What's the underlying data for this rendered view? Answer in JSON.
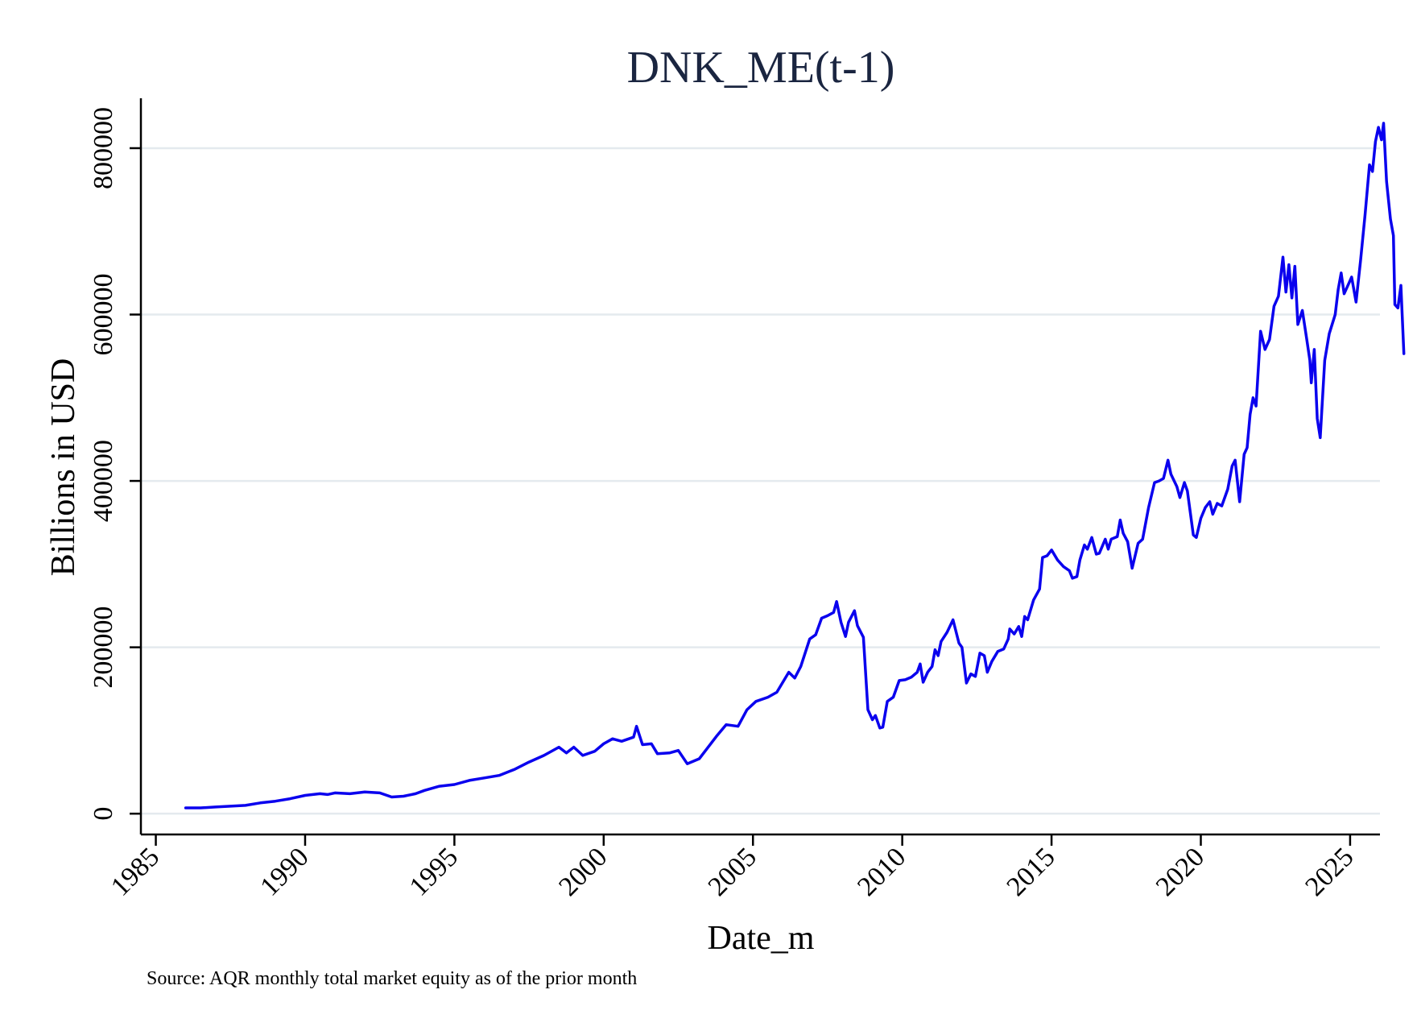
{
  "chart_data": {
    "type": "line",
    "title": "DNK_ME(t-1)",
    "xlabel": "Date_m",
    "ylabel": "Billions in USD",
    "note": "Source: AQR monthly total market equity as of the prior month",
    "xlim": [
      1984.5,
      2026
    ],
    "ylim": [
      -25000,
      860000
    ],
    "x_ticks": [
      1985,
      1990,
      1995,
      2000,
      2005,
      2010,
      2015,
      2020,
      2025
    ],
    "y_ticks": [
      0,
      200000,
      400000,
      600000,
      800000
    ],
    "grid": "horizontal",
    "colors": {
      "line": "#0a00ee",
      "grid": "#e4eaee",
      "axis": "#000000",
      "title": "#1a2540"
    },
    "series": [
      {
        "points": [
          [
            1986.0,
            7000
          ],
          [
            1986.5,
            7000
          ],
          [
            1987.0,
            8000
          ],
          [
            1987.5,
            9000
          ],
          [
            1988.0,
            10000
          ],
          [
            1988.5,
            13000
          ],
          [
            1989.0,
            15000
          ],
          [
            1989.5,
            18000
          ],
          [
            1990.0,
            22000
          ],
          [
            1990.5,
            24000
          ],
          [
            1990.75,
            23000
          ],
          [
            1991.0,
            25000
          ],
          [
            1991.5,
            24000
          ],
          [
            1992.0,
            26000
          ],
          [
            1992.5,
            25000
          ],
          [
            1992.9,
            20000
          ],
          [
            1993.3,
            21000
          ],
          [
            1993.7,
            24000
          ],
          [
            1994.0,
            28000
          ],
          [
            1994.5,
            33000
          ],
          [
            1995.0,
            35000
          ],
          [
            1995.5,
            40000
          ],
          [
            1996.0,
            43000
          ],
          [
            1996.5,
            46000
          ],
          [
            1997.0,
            53000
          ],
          [
            1997.5,
            62000
          ],
          [
            1998.0,
            70000
          ],
          [
            1998.5,
            80000
          ],
          [
            1998.75,
            73000
          ],
          [
            1999.0,
            80000
          ],
          [
            1999.3,
            70000
          ],
          [
            1999.7,
            75000
          ],
          [
            2000.0,
            84000
          ],
          [
            2000.3,
            90000
          ],
          [
            2000.6,
            87000
          ],
          [
            2001.0,
            92000
          ],
          [
            2001.1,
            105000
          ],
          [
            2001.3,
            83000
          ],
          [
            2001.6,
            84000
          ],
          [
            2001.8,
            72000
          ],
          [
            2002.2,
            73000
          ],
          [
            2002.5,
            76000
          ],
          [
            2002.8,
            60000
          ],
          [
            2003.2,
            66000
          ],
          [
            2003.5,
            80000
          ],
          [
            2003.8,
            94000
          ],
          [
            2004.1,
            107000
          ],
          [
            2004.5,
            105000
          ],
          [
            2004.8,
            125000
          ],
          [
            2005.1,
            135000
          ],
          [
            2005.5,
            140000
          ],
          [
            2005.8,
            146000
          ],
          [
            2006.0,
            158000
          ],
          [
            2006.2,
            170000
          ],
          [
            2006.4,
            163000
          ],
          [
            2006.6,
            177000
          ],
          [
            2006.9,
            210000
          ],
          [
            2007.1,
            215000
          ],
          [
            2007.3,
            235000
          ],
          [
            2007.5,
            238000
          ],
          [
            2007.7,
            242000
          ],
          [
            2007.8,
            255000
          ],
          [
            2007.95,
            230000
          ],
          [
            2008.1,
            213000
          ],
          [
            2008.2,
            230000
          ],
          [
            2008.4,
            244000
          ],
          [
            2008.5,
            226000
          ],
          [
            2008.7,
            212000
          ],
          [
            2008.85,
            125000
          ],
          [
            2009.0,
            113000
          ],
          [
            2009.1,
            118000
          ],
          [
            2009.25,
            103000
          ],
          [
            2009.35,
            104000
          ],
          [
            2009.5,
            135000
          ],
          [
            2009.7,
            140000
          ],
          [
            2009.9,
            160000
          ],
          [
            2010.1,
            161000
          ],
          [
            2010.3,
            164000
          ],
          [
            2010.5,
            170000
          ],
          [
            2010.6,
            180000
          ],
          [
            2010.7,
            158000
          ],
          [
            2010.85,
            170000
          ],
          [
            2011.0,
            177000
          ],
          [
            2011.1,
            197000
          ],
          [
            2011.2,
            190000
          ],
          [
            2011.3,
            207000
          ],
          [
            2011.5,
            218000
          ],
          [
            2011.7,
            233000
          ],
          [
            2011.9,
            205000
          ],
          [
            2012.0,
            200000
          ],
          [
            2012.15,
            157000
          ],
          [
            2012.3,
            168000
          ],
          [
            2012.45,
            165000
          ],
          [
            2012.6,
            193000
          ],
          [
            2012.75,
            190000
          ],
          [
            2012.85,
            170000
          ],
          [
            2013.0,
            183000
          ],
          [
            2013.2,
            195000
          ],
          [
            2013.4,
            198000
          ],
          [
            2013.55,
            210000
          ],
          [
            2013.6,
            222000
          ],
          [
            2013.75,
            216000
          ],
          [
            2013.9,
            225000
          ],
          [
            2014.0,
            213000
          ],
          [
            2014.1,
            237000
          ],
          [
            2014.2,
            233000
          ],
          [
            2014.4,
            257000
          ],
          [
            2014.6,
            270000
          ],
          [
            2014.7,
            308000
          ],
          [
            2014.85,
            310000
          ],
          [
            2015.0,
            317000
          ],
          [
            2015.2,
            305000
          ],
          [
            2015.4,
            297000
          ],
          [
            2015.6,
            292000
          ],
          [
            2015.7,
            283000
          ],
          [
            2015.85,
            285000
          ],
          [
            2015.95,
            305000
          ],
          [
            2016.1,
            323000
          ],
          [
            2016.2,
            318000
          ],
          [
            2016.35,
            332000
          ],
          [
            2016.5,
            312000
          ],
          [
            2016.6,
            313000
          ],
          [
            2016.8,
            330000
          ],
          [
            2016.9,
            318000
          ],
          [
            2017.0,
            330000
          ],
          [
            2017.2,
            333000
          ],
          [
            2017.3,
            353000
          ],
          [
            2017.4,
            337000
          ],
          [
            2017.55,
            327000
          ],
          [
            2017.7,
            295000
          ],
          [
            2017.9,
            325000
          ],
          [
            2018.05,
            330000
          ],
          [
            2018.25,
            368000
          ],
          [
            2018.45,
            398000
          ],
          [
            2018.6,
            400000
          ],
          [
            2018.75,
            403000
          ],
          [
            2018.9,
            425000
          ],
          [
            2019.0,
            408000
          ],
          [
            2019.2,
            393000
          ],
          [
            2019.3,
            380000
          ],
          [
            2019.45,
            398000
          ],
          [
            2019.55,
            388000
          ],
          [
            2019.75,
            335000
          ],
          [
            2019.85,
            332000
          ],
          [
            2020.0,
            355000
          ],
          [
            2020.15,
            368000
          ],
          [
            2020.3,
            375000
          ],
          [
            2020.4,
            360000
          ],
          [
            2020.55,
            373000
          ],
          [
            2020.7,
            370000
          ],
          [
            2020.9,
            390000
          ],
          [
            2021.05,
            418000
          ],
          [
            2021.15,
            425000
          ],
          [
            2021.3,
            375000
          ],
          [
            2021.45,
            432000
          ],
          [
            2021.55,
            440000
          ],
          [
            2021.65,
            480000
          ],
          [
            2021.75,
            500000
          ],
          [
            2021.85,
            490000
          ],
          [
            2022.0,
            580000
          ],
          [
            2022.15,
            558000
          ],
          [
            2022.3,
            570000
          ],
          [
            2022.45,
            610000
          ],
          [
            2022.6,
            622000
          ],
          [
            2022.75,
            669000
          ],
          [
            2022.85,
            627000
          ],
          [
            2022.95,
            660000
          ],
          [
            2023.05,
            620000
          ],
          [
            2023.15,
            658000
          ],
          [
            2023.25,
            588000
          ],
          [
            2023.4,
            605000
          ],
          [
            2023.55,
            570000
          ],
          [
            2023.65,
            545000
          ],
          [
            2023.7,
            518000
          ],
          [
            2023.8,
            558000
          ],
          [
            2023.9,
            475000
          ],
          [
            2024.0,
            452000
          ],
          [
            2024.15,
            545000
          ],
          [
            2024.3,
            577000
          ],
          [
            2024.5,
            600000
          ],
          [
            2024.6,
            630000
          ],
          [
            2024.7,
            650000
          ],
          [
            2024.8,
            625000
          ],
          [
            2024.95,
            637000
          ],
          [
            2025.05,
            645000
          ],
          [
            2025.2,
            615000
          ],
          [
            2025.35,
            665000
          ],
          [
            2025.5,
            720000
          ],
          [
            2025.65,
            780000
          ],
          [
            2025.75,
            772000
          ],
          [
            2025.85,
            808000
          ],
          [
            2025.95,
            825000
          ],
          [
            2026.05,
            810000
          ],
          [
            2026.12,
            830000
          ],
          [
            2026.22,
            760000
          ],
          [
            2026.35,
            715000
          ],
          [
            2026.45,
            695000
          ],
          [
            2026.5,
            612000
          ],
          [
            2026.6,
            608000
          ],
          [
            2026.7,
            635000
          ],
          [
            2026.8,
            553000
          ]
        ]
      }
    ]
  }
}
